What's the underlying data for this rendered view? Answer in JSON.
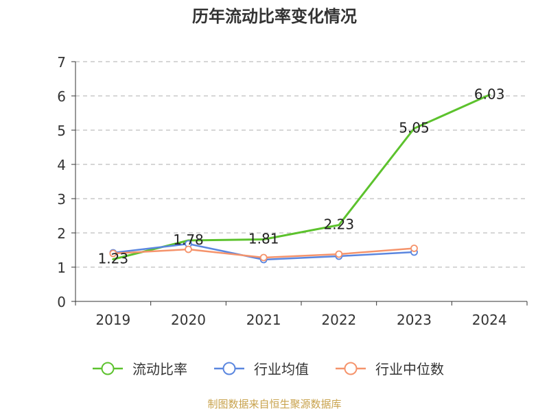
{
  "chart_data": {
    "type": "line",
    "title": "历年流动比率变化情况",
    "categories": [
      "2019",
      "2020",
      "2021",
      "2022",
      "2023",
      "2024"
    ],
    "ylim": [
      0,
      7
    ],
    "yticks": [
      0,
      1,
      2,
      3,
      4,
      5,
      6,
      7
    ],
    "grid": true,
    "legend": "bottom",
    "series": [
      {
        "name": "流动比率",
        "values": [
          1.23,
          1.78,
          1.81,
          2.23,
          5.05,
          6.03
        ],
        "color": "#5cc22d",
        "marker": "none",
        "show_labels": true
      },
      {
        "name": "行业均值",
        "values": [
          1.42,
          1.68,
          1.22,
          1.32,
          1.44,
          null
        ],
        "color": "#5a86df",
        "marker": "circle",
        "show_labels": false
      },
      {
        "name": "行业中位数",
        "values": [
          1.4,
          1.52,
          1.28,
          1.38,
          1.55,
          null
        ],
        "color": "#f5936b",
        "marker": "circle",
        "show_labels": false
      }
    ]
  },
  "footer": {
    "source": "制图数据来自恒生聚源数据库",
    "color": "#c8a24c"
  }
}
